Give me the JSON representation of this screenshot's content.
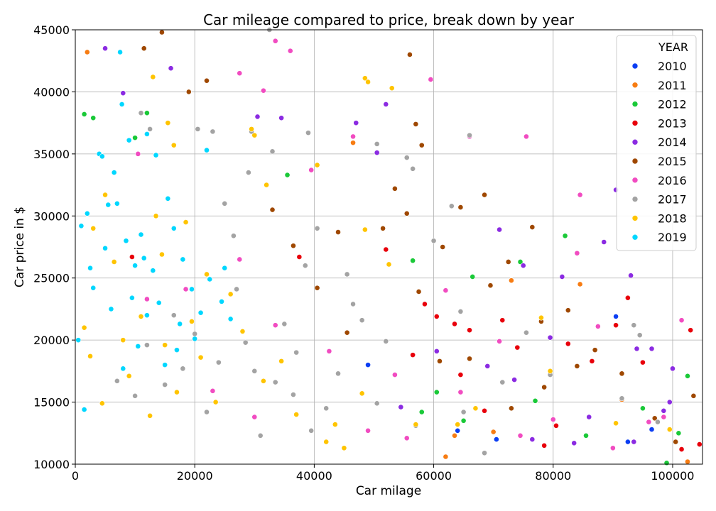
{
  "chart_data": {
    "type": "scatter",
    "title": "Car mileage compared to price, break down by year",
    "xlabel": "Car milage",
    "ylabel": "Car price in $",
    "xlim": [
      0,
      105000
    ],
    "ylim": [
      10000,
      45000
    ],
    "xticks": [
      0,
      20000,
      40000,
      60000,
      80000,
      100000
    ],
    "yticks": [
      10000,
      15000,
      20000,
      25000,
      30000,
      35000,
      40000,
      45000
    ],
    "grid": true,
    "legend": {
      "title": "YEAR",
      "placement": "top-right"
    },
    "series": [
      {
        "name": "2010",
        "color": "#0b3ef3",
        "points": [
          [
            90500,
            21900
          ],
          [
            92500,
            11800
          ],
          [
            96500,
            12800
          ],
          [
            64000,
            12700
          ],
          [
            49000,
            18000
          ],
          [
            70500,
            12000
          ]
        ]
      },
      {
        "name": "2011",
        "color": "#f77c12",
        "points": [
          [
            2000,
            43200
          ],
          [
            46500,
            35900
          ],
          [
            62000,
            10600
          ],
          [
            102500,
            10200
          ],
          [
            70000,
            12600
          ],
          [
            84500,
            24500
          ],
          [
            73000,
            24800
          ],
          [
            63500,
            12300
          ],
          [
            91500,
            15200
          ]
        ]
      },
      {
        "name": "2012",
        "color": "#1ac938",
        "points": [
          [
            1500,
            38200
          ],
          [
            3000,
            37900
          ],
          [
            12000,
            38300
          ],
          [
            10000,
            36300
          ],
          [
            35500,
            33300
          ],
          [
            56500,
            26400
          ],
          [
            66500,
            25100
          ],
          [
            82000,
            28400
          ],
          [
            85500,
            12300
          ],
          [
            99000,
            10100
          ],
          [
            101000,
            12500
          ],
          [
            102500,
            17100
          ],
          [
            74500,
            26300
          ],
          [
            58000,
            14200
          ],
          [
            60500,
            15800
          ],
          [
            65000,
            13500
          ],
          [
            77000,
            15100
          ],
          [
            95000,
            14500
          ]
        ]
      },
      {
        "name": "2013",
        "color": "#e8000b",
        "points": [
          [
            9500,
            26700
          ],
          [
            37500,
            26700
          ],
          [
            52000,
            27300
          ],
          [
            58500,
            22900
          ],
          [
            63500,
            21300
          ],
          [
            66000,
            20800
          ],
          [
            74000,
            19400
          ],
          [
            82500,
            19700
          ],
          [
            90500,
            21200
          ],
          [
            92500,
            23400
          ],
          [
            95000,
            18200
          ],
          [
            103000,
            20800
          ],
          [
            101500,
            11200
          ],
          [
            104500,
            11600
          ],
          [
            80500,
            13100
          ],
          [
            86500,
            18300
          ],
          [
            64500,
            17200
          ],
          [
            60500,
            21900
          ],
          [
            56500,
            18800
          ],
          [
            71500,
            21600
          ],
          [
            78500,
            11500
          ],
          [
            68500,
            14300
          ]
        ]
      },
      {
        "name": "2014",
        "color": "#8b2be2",
        "points": [
          [
            5000,
            43500
          ],
          [
            8000,
            39900
          ],
          [
            16000,
            41900
          ],
          [
            30500,
            38000
          ],
          [
            34500,
            37900
          ],
          [
            52000,
            39000
          ],
          [
            47000,
            37500
          ],
          [
            50500,
            35100
          ],
          [
            71000,
            28900
          ],
          [
            75000,
            26000
          ],
          [
            81500,
            25100
          ],
          [
            88500,
            27900
          ],
          [
            93000,
            25200
          ],
          [
            90500,
            32100
          ],
          [
            94000,
            19300
          ],
          [
            100000,
            17700
          ],
          [
            99500,
            15000
          ],
          [
            93500,
            11800
          ],
          [
            76500,
            12000
          ],
          [
            69000,
            17900
          ],
          [
            60500,
            19100
          ],
          [
            79500,
            20200
          ],
          [
            96500,
            19300
          ],
          [
            86000,
            13800
          ],
          [
            98500,
            14300
          ],
          [
            83500,
            11700
          ],
          [
            73500,
            16800
          ],
          [
            54500,
            14600
          ]
        ]
      },
      {
        "name": "2015",
        "color": "#9f4800",
        "points": [
          [
            14500,
            44800
          ],
          [
            11500,
            43500
          ],
          [
            19000,
            40000
          ],
          [
            22000,
            40900
          ],
          [
            33000,
            30500
          ],
          [
            36500,
            27600
          ],
          [
            44000,
            28700
          ],
          [
            51500,
            29000
          ],
          [
            53500,
            32200
          ],
          [
            55500,
            30200
          ],
          [
            56000,
            43000
          ],
          [
            57000,
            37400
          ],
          [
            58000,
            35700
          ],
          [
            61500,
            27500
          ],
          [
            64500,
            30700
          ],
          [
            68500,
            31700
          ],
          [
            72500,
            26300
          ],
          [
            76500,
            29100
          ],
          [
            78000,
            21500
          ],
          [
            82500,
            22400
          ],
          [
            87000,
            19200
          ],
          [
            91500,
            17300
          ],
          [
            97000,
            13700
          ],
          [
            100500,
            11800
          ],
          [
            103500,
            15500
          ],
          [
            69500,
            24400
          ],
          [
            61000,
            18300
          ],
          [
            78500,
            16200
          ],
          [
            84000,
            17900
          ],
          [
            66000,
            18500
          ],
          [
            73000,
            14500
          ],
          [
            57500,
            23900
          ],
          [
            45500,
            20600
          ],
          [
            40500,
            24200
          ]
        ]
      },
      {
        "name": "2016",
        "color": "#f14cc1",
        "points": [
          [
            10500,
            35000
          ],
          [
            27500,
            41500
          ],
          [
            31500,
            40100
          ],
          [
            33500,
            44100
          ],
          [
            36000,
            43300
          ],
          [
            59500,
            41000
          ],
          [
            66000,
            36400
          ],
          [
            75500,
            36400
          ],
          [
            84500,
            31700
          ],
          [
            71000,
            19900
          ],
          [
            84000,
            27000
          ],
          [
            101500,
            21600
          ],
          [
            98500,
            13800
          ],
          [
            90000,
            11300
          ],
          [
            53500,
            17200
          ],
          [
            46500,
            36400
          ],
          [
            39500,
            33700
          ],
          [
            62000,
            24000
          ],
          [
            87500,
            21100
          ],
          [
            96000,
            13400
          ],
          [
            80000,
            13600
          ],
          [
            74500,
            12300
          ],
          [
            64500,
            15800
          ],
          [
            55500,
            12100
          ],
          [
            49000,
            12700
          ],
          [
            30000,
            13800
          ],
          [
            23000,
            15900
          ],
          [
            18500,
            24100
          ],
          [
            27500,
            26500
          ],
          [
            33500,
            21200
          ],
          [
            42500,
            19100
          ],
          [
            12000,
            23300
          ]
        ]
      },
      {
        "name": "2017",
        "color": "#a3a3a3",
        "points": [
          [
            11000,
            38300
          ],
          [
            12500,
            37000
          ],
          [
            20500,
            37000
          ],
          [
            23000,
            36800
          ],
          [
            29500,
            36800
          ],
          [
            32500,
            45000
          ],
          [
            33000,
            35200
          ],
          [
            39000,
            36700
          ],
          [
            50500,
            35800
          ],
          [
            55500,
            34700
          ],
          [
            56500,
            33800
          ],
          [
            63000,
            30800
          ],
          [
            66000,
            36500
          ],
          [
            68500,
            10900
          ],
          [
            60000,
            28000
          ],
          [
            64500,
            22300
          ],
          [
            93500,
            21200
          ],
          [
            94500,
            20400
          ],
          [
            91500,
            15300
          ],
          [
            97500,
            13400
          ],
          [
            75500,
            20600
          ],
          [
            79500,
            17200
          ],
          [
            71500,
            16600
          ],
          [
            65000,
            14200
          ],
          [
            57000,
            13100
          ],
          [
            46500,
            22900
          ],
          [
            37000,
            19000
          ],
          [
            27000,
            24100
          ],
          [
            22000,
            14200
          ],
          [
            15000,
            16400
          ],
          [
            30000,
            17500
          ],
          [
            42000,
            14500
          ],
          [
            35000,
            21300
          ],
          [
            25000,
            31000
          ],
          [
            18000,
            17700
          ],
          [
            40500,
            29000
          ],
          [
            52000,
            19900
          ],
          [
            10000,
            15500
          ],
          [
            26500,
            28400
          ],
          [
            31000,
            12300
          ],
          [
            36500,
            15600
          ],
          [
            44000,
            17300
          ],
          [
            48000,
            21600
          ],
          [
            20000,
            20500
          ],
          [
            28500,
            19800
          ],
          [
            33500,
            16600
          ],
          [
            38500,
            26000
          ],
          [
            16500,
            22000
          ],
          [
            24000,
            18200
          ],
          [
            12000,
            19600
          ],
          [
            7000,
            16700
          ],
          [
            45500,
            25300
          ],
          [
            50500,
            14900
          ],
          [
            29000,
            33500
          ],
          [
            39500,
            12700
          ]
        ]
      },
      {
        "name": "2018",
        "color": "#ffc400",
        "points": [
          [
            13000,
            41200
          ],
          [
            15500,
            37500
          ],
          [
            16500,
            35700
          ],
          [
            29500,
            37000
          ],
          [
            30000,
            36500
          ],
          [
            32000,
            32500
          ],
          [
            40500,
            34100
          ],
          [
            48500,
            41100
          ],
          [
            49000,
            40800
          ],
          [
            53000,
            40300
          ],
          [
            48500,
            28900
          ],
          [
            52500,
            26100
          ],
          [
            57000,
            13200
          ],
          [
            64000,
            13200
          ],
          [
            67000,
            14500
          ],
          [
            78000,
            21800
          ],
          [
            79500,
            17500
          ],
          [
            99500,
            12800
          ],
          [
            90500,
            13300
          ],
          [
            42000,
            11800
          ],
          [
            45000,
            11300
          ],
          [
            5000,
            31700
          ],
          [
            3000,
            29000
          ],
          [
            1500,
            21000
          ],
          [
            11000,
            21900
          ],
          [
            8000,
            20000
          ],
          [
            14500,
            26900
          ],
          [
            18500,
            29500
          ],
          [
            22000,
            25300
          ],
          [
            13500,
            30000
          ],
          [
            6500,
            26300
          ],
          [
            2500,
            18700
          ],
          [
            28000,
            20700
          ],
          [
            17000,
            15800
          ],
          [
            37000,
            14000
          ],
          [
            21000,
            18600
          ],
          [
            9000,
            17100
          ],
          [
            4500,
            14900
          ],
          [
            26000,
            23700
          ],
          [
            34500,
            18300
          ],
          [
            43500,
            13200
          ],
          [
            48000,
            15700
          ],
          [
            15000,
            19600
          ],
          [
            23500,
            15000
          ],
          [
            31500,
            16700
          ],
          [
            19500,
            21500
          ],
          [
            12500,
            13900
          ]
        ]
      },
      {
        "name": "2019",
        "color": "#00d7ff",
        "points": [
          [
            500,
            20000
          ],
          [
            1000,
            29200
          ],
          [
            2000,
            30200
          ],
          [
            4000,
            35000
          ],
          [
            4500,
            34800
          ],
          [
            5500,
            30900
          ],
          [
            7000,
            31000
          ],
          [
            7500,
            43200
          ],
          [
            7800,
            39000
          ],
          [
            8500,
            28000
          ],
          [
            9000,
            36100
          ],
          [
            10000,
            26000
          ],
          [
            11000,
            28500
          ],
          [
            12000,
            36600
          ],
          [
            13500,
            34900
          ],
          [
            15500,
            31400
          ],
          [
            16500,
            29000
          ],
          [
            18000,
            26500
          ],
          [
            19500,
            24100
          ],
          [
            21000,
            22200
          ],
          [
            22000,
            35300
          ],
          [
            24500,
            23100
          ],
          [
            26000,
            21700
          ],
          [
            6000,
            22500
          ],
          [
            3000,
            24200
          ],
          [
            8000,
            17700
          ],
          [
            10500,
            19500
          ],
          [
            13000,
            25600
          ],
          [
            15000,
            18000
          ],
          [
            17500,
            21300
          ],
          [
            20000,
            20100
          ],
          [
            22500,
            24900
          ],
          [
            12000,
            22000
          ],
          [
            5000,
            27400
          ],
          [
            9500,
            23400
          ],
          [
            2500,
            25800
          ],
          [
            1500,
            14400
          ],
          [
            17000,
            19200
          ],
          [
            11500,
            26600
          ],
          [
            14000,
            23000
          ],
          [
            6500,
            33500
          ],
          [
            25000,
            25800
          ]
        ]
      }
    ]
  }
}
